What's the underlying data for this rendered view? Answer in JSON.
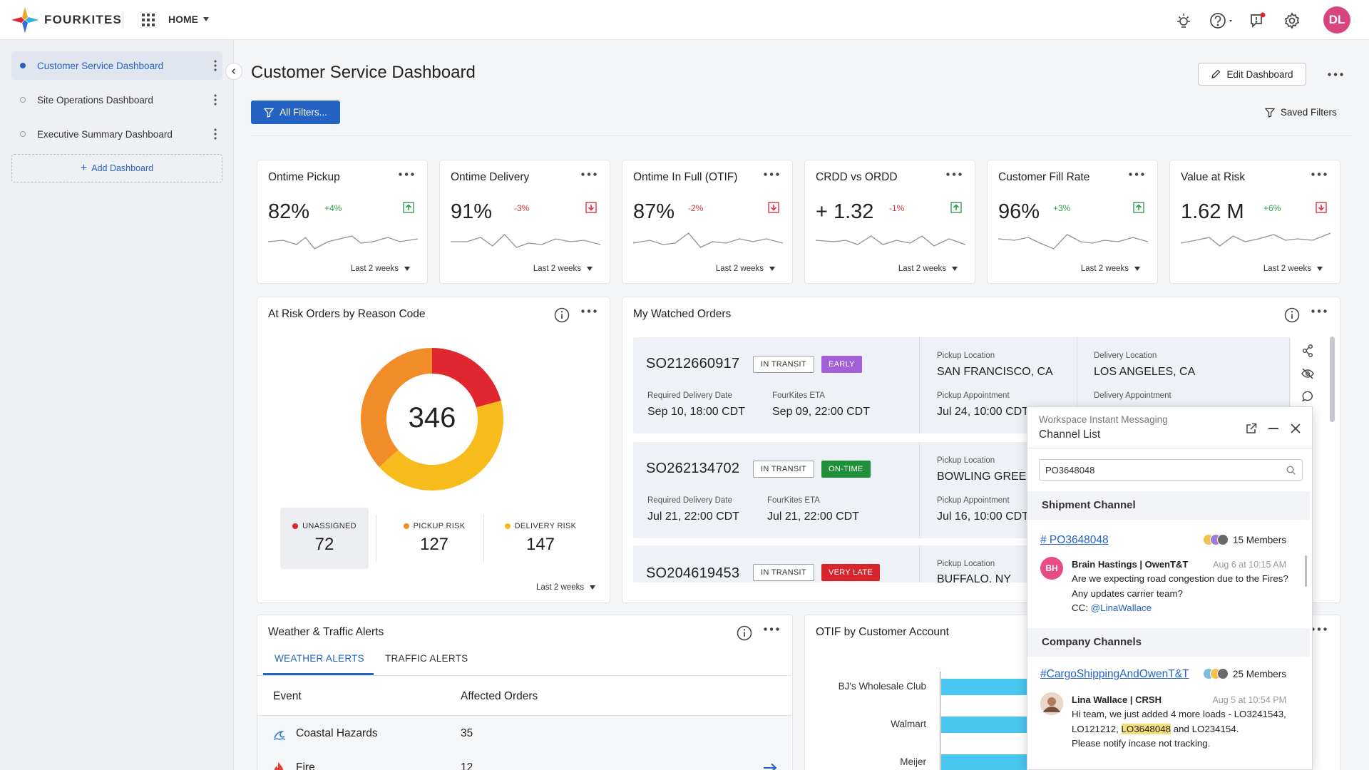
{
  "topbar": {
    "brand": "FOURKITES",
    "nav_label": "HOME",
    "user_initials": "DL"
  },
  "sidebar": {
    "items": [
      {
        "label": "Customer Service Dashboard"
      },
      {
        "label": "Site Operations Dashboard"
      },
      {
        "label": "Executive Summary Dashboard"
      }
    ],
    "add_label": "Add Dashboard"
  },
  "header": {
    "title": "Customer Service Dashboard",
    "edit_label": "Edit Dashboard",
    "filters_label": "All Filters...",
    "saved_filters_label": "Saved Filters"
  },
  "kpis": [
    {
      "title": "Ontime Pickup",
      "value": "82%",
      "delta": "+4%",
      "trend": "up",
      "period": "Last 2 weeks"
    },
    {
      "title": "Ontime Delivery",
      "value": "91%",
      "delta": "-3%",
      "trend": "down",
      "period": "Last 2 weeks"
    },
    {
      "title": "Ontime In Full (OTIF)",
      "value": "87%",
      "delta": "-2%",
      "trend": "down",
      "period": "Last 2 weeks"
    },
    {
      "title": "CRDD vs ORDD",
      "value": "+ 1.32",
      "delta": "-1%",
      "trend": "up",
      "period": "Last 2 weeks"
    },
    {
      "title": "Customer Fill Rate",
      "value": "96%",
      "delta": "+3%",
      "trend": "up",
      "period": "Last 2 weeks"
    },
    {
      "title": "Value at Risk",
      "value": "1.62 M",
      "delta": "+6%",
      "trend": "down",
      "period": "Last 2 weeks"
    }
  ],
  "colors": {
    "accent": "#2462c4",
    "positive": "#2e9e4f",
    "negative": "#d9363e",
    "unassigned": "#e0262f",
    "pickup_risk": "#f28c28",
    "delivery_risk": "#f7bb1c"
  },
  "at_risk": {
    "title": "At Risk Orders by Reason Code",
    "total": "346",
    "segments": [
      {
        "label": "UNASSIGNED",
        "value": 72
      },
      {
        "label": "PICKUP RISK",
        "value": 127
      },
      {
        "label": "DELIVERY RISK",
        "value": 147
      }
    ],
    "period": "Last 2 weeks"
  },
  "watched": {
    "title": "My Watched Orders",
    "orders": [
      {
        "id": "SO212660917",
        "status": "IN TRANSIT",
        "tag": "EARLY",
        "tag_color": "#a35fd8",
        "req_label": "Required Delivery Date",
        "req_value": "Sep 10, 18:00 CDT",
        "eta_label": "FourKites ETA",
        "eta_value": "Sep 09, 22:00 CDT",
        "pickup_label": "Pickup Location",
        "pickup_value": "SAN FRANCISCO, CA",
        "appt_label": "Pickup Appointment",
        "appt_value": "Jul 24, 10:00 CDT",
        "delivery_label": "Delivery Location",
        "delivery_value": "LOS ANGELES, CA",
        "del_appt_label": "Delivery Appointment"
      },
      {
        "id": "SO262134702",
        "status": "IN TRANSIT",
        "tag": "ON-TIME",
        "tag_color": "#1f8f3a",
        "req_label": "Required Delivery Date",
        "req_value": "Jul 21, 22:00 CDT",
        "eta_label": "FourKites ETA",
        "eta_value": "Jul 21, 22:00 CDT",
        "pickup_label": "Pickup Location",
        "pickup_value": "BOWLING GREEN",
        "appt_label": "Pickup Appointment",
        "appt_value": "Jul 16, 10:00 CDT"
      },
      {
        "id": "SO204619453",
        "status": "IN TRANSIT",
        "tag": "VERY LATE",
        "tag_color": "#d7262e",
        "pickup_label": "Pickup Location",
        "pickup_value": "BUFFALO, NY"
      }
    ]
  },
  "chat": {
    "app_title": "Workspace Instant Messaging",
    "panel_title": "Channel List",
    "search_value": "PO3648048",
    "shipment_section": "Shipment Channel",
    "company_section": "Company Channels",
    "channels": [
      {
        "name": "# PO3648048",
        "members": "15 Members",
        "msg_initials": "BH",
        "msg_author": "Brain Hastings | OwenT&T",
        "msg_time": "Aug 6 at 10:15 AM",
        "msg_line1": "Are we expecting road congestion due to the Fires?",
        "msg_line2": "Any updates carrier team?",
        "msg_cc": "CC: ",
        "msg_mention": "@LinaWallace"
      },
      {
        "name": "#CargoShippingAndOwenT&T",
        "members": "25 Members",
        "msg_author": "Lina Wallace | CRSH",
        "msg_time": "Aug 5 at 10:54 PM",
        "msg_line1": "Hi team, we just added 4 more loads - LO3241543,",
        "msg_line2_pre": "LO121212, ",
        "msg_highlight": "LO3648048",
        "msg_line2_post": " and LO234154.",
        "msg_line3": "Please notify incase not tracking."
      }
    ]
  },
  "weather": {
    "title": "Weather & Traffic Alerts",
    "tabs": [
      "WEATHER ALERTS",
      "TRAFFIC ALERTS"
    ],
    "columns": [
      "Event",
      "Affected Orders"
    ],
    "rows": [
      {
        "event": "Coastal Hazards",
        "count": "35"
      },
      {
        "event": "Fire",
        "count": "12"
      }
    ]
  },
  "otif": {
    "title": "OTIF by Customer Account"
  },
  "chart_data": {
    "type": "bar",
    "title": "OTIF by Customer Account",
    "categories": [
      "BJ's Wholesale Club",
      "Walmart",
      "Meijer"
    ]
  }
}
